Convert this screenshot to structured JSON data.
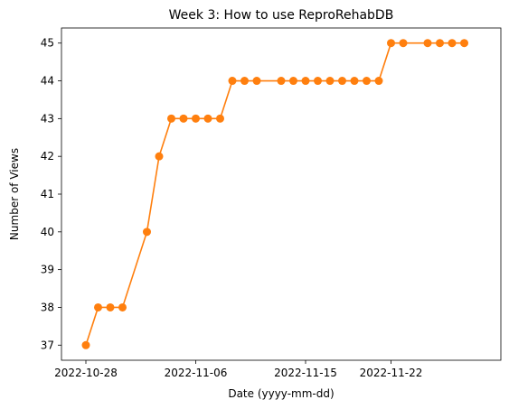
{
  "chart_data": {
    "type": "line",
    "title": "Week 3: How to use ReproRehabDB",
    "xlabel": "Date (yyyy-mm-dd)",
    "ylabel": "Number of Views",
    "x_ticks": [
      "2022-10-28",
      "2022-11-06",
      "2022-11-15",
      "2022-11-22"
    ],
    "y_ticks": [
      "37",
      "38",
      "39",
      "40",
      "41",
      "42",
      "43",
      "44",
      "45"
    ],
    "xlim": [
      "2022-10-26",
      "2022-12-01"
    ],
    "ylim": [
      36.6,
      45.4
    ],
    "grid": false,
    "series": [
      {
        "color": "#ff7f0e",
        "points": [
          {
            "x": "2022-10-28",
            "y": 37
          },
          {
            "x": "2022-10-29",
            "y": 38
          },
          {
            "x": "2022-10-30",
            "y": 38
          },
          {
            "x": "2022-10-31",
            "y": 38
          },
          {
            "x": "2022-11-02",
            "y": 40
          },
          {
            "x": "2022-11-03",
            "y": 42
          },
          {
            "x": "2022-11-04",
            "y": 43
          },
          {
            "x": "2022-11-05",
            "y": 43
          },
          {
            "x": "2022-11-06",
            "y": 43
          },
          {
            "x": "2022-11-07",
            "y": 43
          },
          {
            "x": "2022-11-08",
            "y": 43
          },
          {
            "x": "2022-11-09",
            "y": 44
          },
          {
            "x": "2022-11-10",
            "y": 44
          },
          {
            "x": "2022-11-11",
            "y": 44
          },
          {
            "x": "2022-11-13",
            "y": 44
          },
          {
            "x": "2022-11-14",
            "y": 44
          },
          {
            "x": "2022-11-15",
            "y": 44
          },
          {
            "x": "2022-11-16",
            "y": 44
          },
          {
            "x": "2022-11-17",
            "y": 44
          },
          {
            "x": "2022-11-18",
            "y": 44
          },
          {
            "x": "2022-11-19",
            "y": 44
          },
          {
            "x": "2022-11-20",
            "y": 44
          },
          {
            "x": "2022-11-21",
            "y": 44
          },
          {
            "x": "2022-11-22",
            "y": 45
          },
          {
            "x": "2022-11-23",
            "y": 45
          },
          {
            "x": "2022-11-25",
            "y": 45
          },
          {
            "x": "2022-11-26",
            "y": 45
          },
          {
            "x": "2022-11-27",
            "y": 45
          },
          {
            "x": "2022-11-28",
            "y": 45
          }
        ]
      }
    ]
  }
}
